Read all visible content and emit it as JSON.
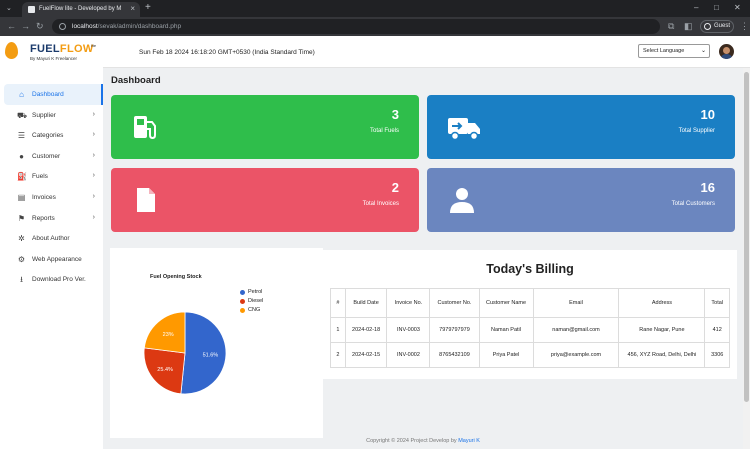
{
  "browser": {
    "tab_title": "FuelFlow lite - Developed by M",
    "url_host": "localhost",
    "url_path": "/sevak/admin/dashboard.php",
    "profile_label": "Guest"
  },
  "brand": {
    "name_part1": "FUEL",
    "name_part2": "FLOW",
    "edition": "lite",
    "tagline": "By Mayuri K Freelancer"
  },
  "sidebar": {
    "items": [
      {
        "label": "Dashboard",
        "icon": "home-icon",
        "glyph": "⌂",
        "chevron": ""
      },
      {
        "label": "Supplier",
        "icon": "truck-icon",
        "glyph": "⛟",
        "chevron": "›"
      },
      {
        "label": "Categories",
        "icon": "list-icon",
        "glyph": "☰",
        "chevron": "›"
      },
      {
        "label": "Customer",
        "icon": "user-icon",
        "glyph": "●",
        "chevron": "›"
      },
      {
        "label": "Fuels",
        "icon": "gas-pump-icon",
        "glyph": "⛽",
        "chevron": "›"
      },
      {
        "label": "Invoices",
        "icon": "file-icon",
        "glyph": "▤",
        "chevron": "›"
      },
      {
        "label": "Reports",
        "icon": "flag-icon",
        "glyph": "⚑",
        "chevron": "›"
      },
      {
        "label": "About Author",
        "icon": "gears-icon",
        "glyph": "✲",
        "chevron": ""
      },
      {
        "label": "Web Appearance",
        "icon": "gear-icon",
        "glyph": "⚙",
        "chevron": ""
      },
      {
        "label": "Download Pro Ver.",
        "icon": "download-icon",
        "glyph": "⭳",
        "chevron": ""
      }
    ]
  },
  "header": {
    "datetime": "Sun Feb 18 2024 16:18:20 GMT+0530 (India Standard Time)",
    "language_select": "Select Language"
  },
  "main": {
    "title": "Dashboard",
    "cards": [
      {
        "value": "3",
        "label": "Total Fuels",
        "color": "#2fbe4b",
        "icon": "gas-pump-icon"
      },
      {
        "value": "10",
        "label": "Total Supplier",
        "color": "#1a7fc4",
        "icon": "truck-icon"
      },
      {
        "value": "2",
        "label": "Total Invoices",
        "color": "#eb5467",
        "icon": "file-icon"
      },
      {
        "value": "16",
        "label": "Total Customers",
        "color": "#6b86bf",
        "icon": "user-icon"
      }
    ]
  },
  "chart_data": {
    "type": "pie",
    "title": "Fuel Opening Stock",
    "legend_position": "top-right",
    "slices": [
      {
        "label": "Petrol",
        "value": 51.6,
        "display": "51.6%",
        "color": "#3366cc"
      },
      {
        "label": "Diesel",
        "value": 25.4,
        "display": "25.4%",
        "color": "#dc3912"
      },
      {
        "label": "CNG",
        "value": 23.0,
        "display": "23%",
        "color": "#ff9900"
      }
    ]
  },
  "billing": {
    "title": "Today's Billing",
    "columns": [
      "#",
      "Build Date",
      "Invoice No.",
      "Customer No.",
      "Customer Name",
      "Email",
      "Address",
      "Total"
    ],
    "rows": [
      [
        "1",
        "2024-02-18",
        "INV-0003",
        "7979797979",
        "Naman Patil",
        "naman@gmail.com",
        "Rane Nagar, Pune",
        "412"
      ],
      [
        "2",
        "2024-02-15",
        "INV-0002",
        "8765432109",
        "Priya Patel",
        "priya@example.com",
        "456, XYZ Road, Delhi, Delhi",
        "3306"
      ]
    ]
  },
  "footer": {
    "text": "Copyright © 2024 Project Develop by",
    "author": "Mayuri K"
  }
}
